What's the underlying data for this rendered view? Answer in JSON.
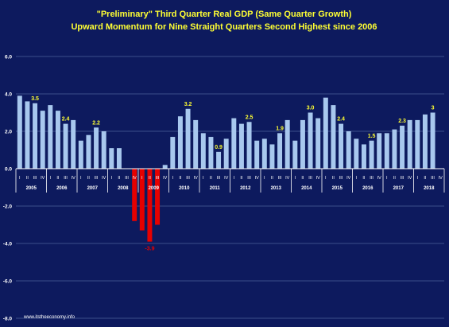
{
  "chart_data": {
    "type": "bar",
    "title": "\"Preliminary\" Third Quarter Real GDP (Same Quarter Growth)",
    "subtitle": "Upward Momentum for Nine Straight Quarters Second Highest since 2006",
    "ylim": [
      -8,
      6
    ],
    "yticks": [
      "6.0",
      "4.0",
      "2.0",
      "0.0",
      "-2.0",
      "-4.0",
      "-6.0",
      "-8.0"
    ],
    "grid": true,
    "quarter_labels": [
      "I",
      "II",
      "III",
      "IV"
    ],
    "years": [
      "2005",
      "2006",
      "2007",
      "2008",
      "2009",
      "2010",
      "2011",
      "2012",
      "2013",
      "2014",
      "2015",
      "2016",
      "2017",
      "2018"
    ],
    "values": [
      3.9,
      3.6,
      3.5,
      3.1,
      3.4,
      3.1,
      2.4,
      2.6,
      1.5,
      1.8,
      2.2,
      2.0,
      1.1,
      1.1,
      0.0,
      -2.8,
      -3.3,
      -3.9,
      -3.0,
      0.2,
      1.7,
      2.8,
      3.2,
      2.6,
      1.9,
      1.7,
      0.9,
      1.6,
      2.7,
      2.4,
      2.5,
      1.5,
      1.6,
      1.3,
      1.9,
      2.6,
      1.5,
      2.6,
      3.0,
      2.7,
      3.8,
      3.4,
      2.4,
      2.0,
      1.6,
      1.3,
      1.5,
      1.9,
      1.9,
      2.1,
      2.3,
      2.6,
      2.6,
      2.9,
      3.0,
      null
    ],
    "annotations": [
      {
        "index": 2,
        "text": "3.5"
      },
      {
        "index": 6,
        "text": "2.4"
      },
      {
        "index": 10,
        "text": "2.2"
      },
      {
        "index": 17,
        "text": "-3.9"
      },
      {
        "index": 22,
        "text": "3.2"
      },
      {
        "index": 26,
        "text": "0.9"
      },
      {
        "index": 30,
        "text": "2.5"
      },
      {
        "index": 34,
        "text": "1.9"
      },
      {
        "index": 38,
        "text": "3.0"
      },
      {
        "index": 42,
        "text": "2.4"
      },
      {
        "index": 46,
        "text": "1.5"
      },
      {
        "index": 50,
        "text": "2.3"
      },
      {
        "index": 54,
        "text": "3"
      }
    ],
    "source": "www.itstheeconomy.info"
  },
  "colors": {
    "background": "#0d1a5e",
    "positive_bar": "#a8c8ee",
    "negative_bar": "#e60000",
    "title_text": "#ffff33",
    "axis_text": "#ffffff",
    "grid": "#3b4e8a"
  }
}
